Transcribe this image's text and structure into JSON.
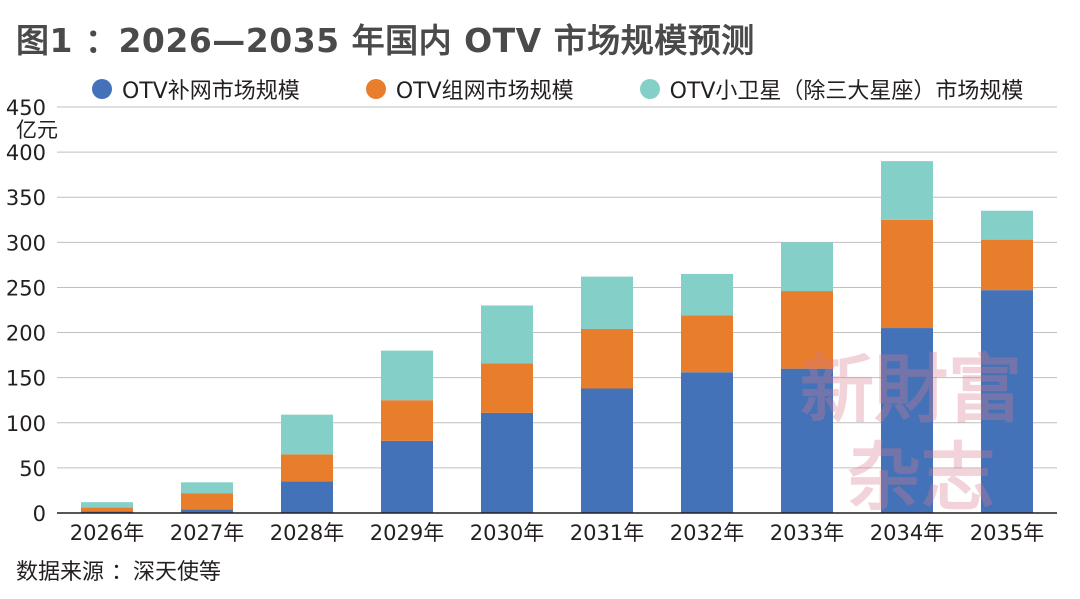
{
  "title": "图1 ：2026—2035 年国内 OTV 市场规模预测",
  "source": "数据来源 ：深天使等",
  "watermark": [
    "新財富",
    "杂志"
  ],
  "colors": {
    "blue": "#4472b8",
    "orange": "#e87d2c",
    "teal": "#84cfc8",
    "grid": "#bfbfbf"
  },
  "chart_data": {
    "type": "bar",
    "stacked": true,
    "categories": [
      "2026年",
      "2027年",
      "2028年",
      "2029年",
      "2030年",
      "2031年",
      "2032年",
      "2033年",
      "2034年",
      "2035年"
    ],
    "series": [
      {
        "name": "OTV补网市场规模",
        "color": "#4472b8",
        "values": [
          2,
          4,
          35,
          80,
          111,
          138,
          156,
          160,
          205,
          247
        ]
      },
      {
        "name": "OTV组网市场规模",
        "color": "#e87d2c",
        "values": [
          4,
          18,
          30,
          45,
          55,
          66,
          63,
          86,
          120,
          56
        ]
      },
      {
        "name": "OTV小卫星（除三大星座）市场规模",
        "color": "#84cfc8",
        "values": [
          6,
          12,
          44,
          55,
          64,
          58,
          46,
          54,
          65,
          32
        ]
      }
    ],
    "ylabel": "亿元",
    "ylim": [
      0,
      450
    ],
    "yticks": [
      0,
      50,
      100,
      150,
      200,
      250,
      300,
      350,
      400,
      450
    ],
    "grid": true,
    "legend_position": "top"
  }
}
